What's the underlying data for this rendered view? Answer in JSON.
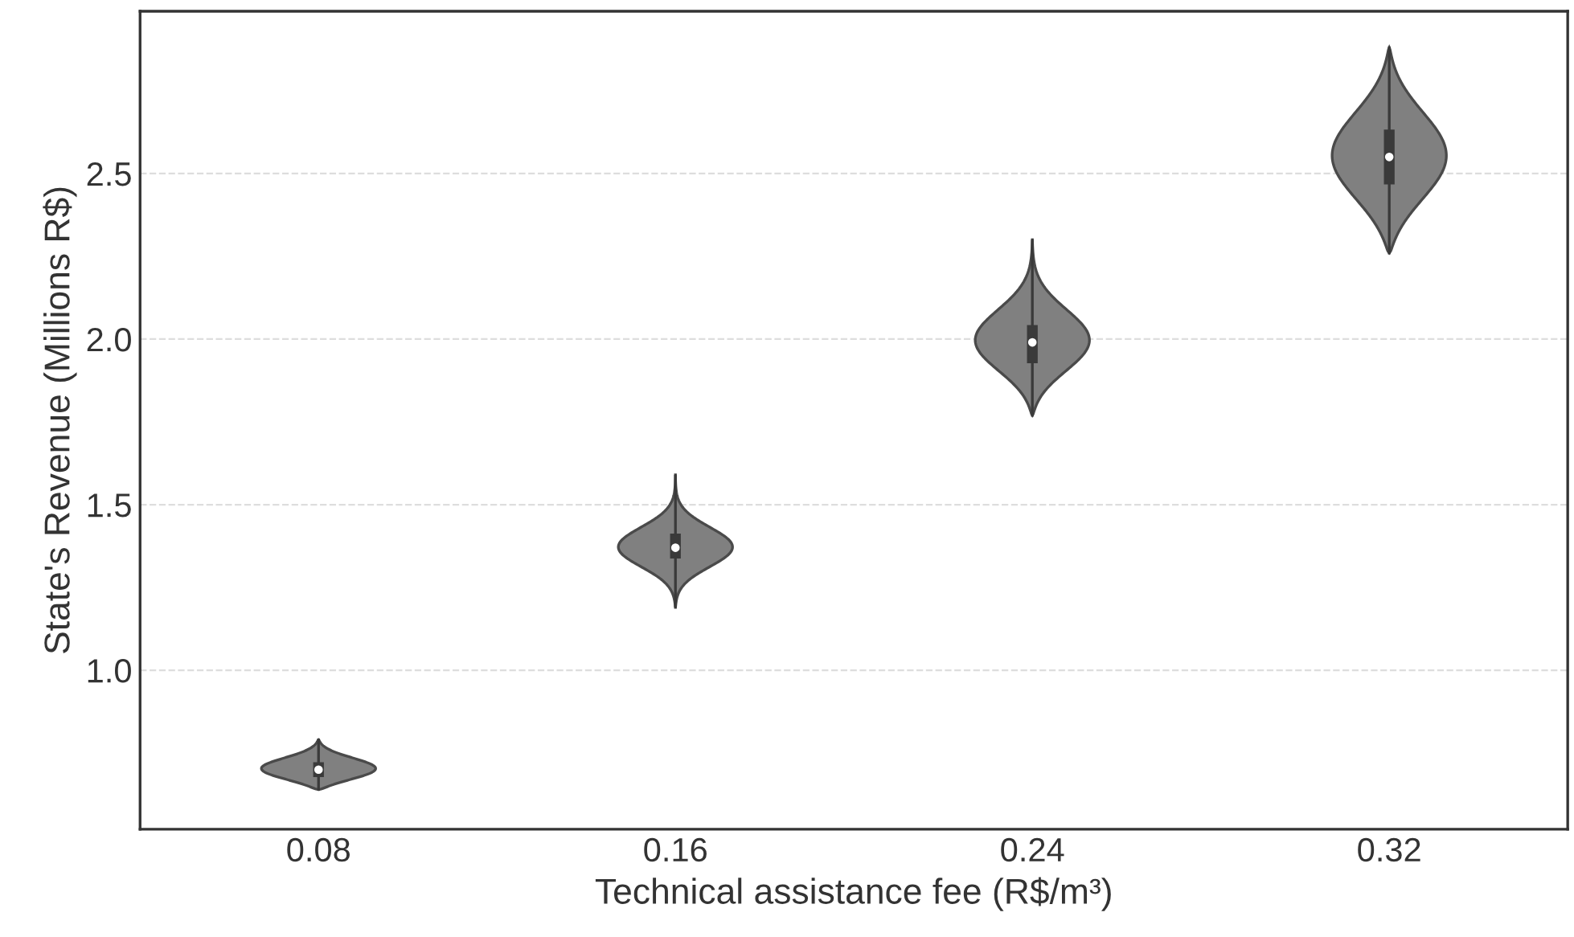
{
  "chart_data": {
    "type": "box",
    "xlabel": "Technical assistance fee (R$/m³)",
    "ylabel": "State's Revenue (Millions R$)",
    "categories": [
      "0.08",
      "0.16",
      "0.24",
      "0.32"
    ],
    "boxes": [
      {
        "low": 0.64,
        "q1": 0.68,
        "median": 0.7,
        "q3": 0.72,
        "high": 0.79
      },
      {
        "low": 1.19,
        "q1": 1.34,
        "median": 1.37,
        "q3": 1.41,
        "high": 1.59
      },
      {
        "low": 1.77,
        "q1": 1.93,
        "median": 1.99,
        "q3": 2.04,
        "high": 2.3
      },
      {
        "low": 2.26,
        "q1": 2.47,
        "median": 2.55,
        "q3": 2.63,
        "high": 2.88
      }
    ],
    "color": "#3a3a3a",
    "ylim": [
      0.52,
      2.99
    ],
    "yticks": [
      {
        "value": 1.0,
        "label": "1.0"
      },
      1.5,
      {
        "value": 2.0,
        "label": "2.0"
      },
      2.5
    ],
    "grid": "y"
  }
}
